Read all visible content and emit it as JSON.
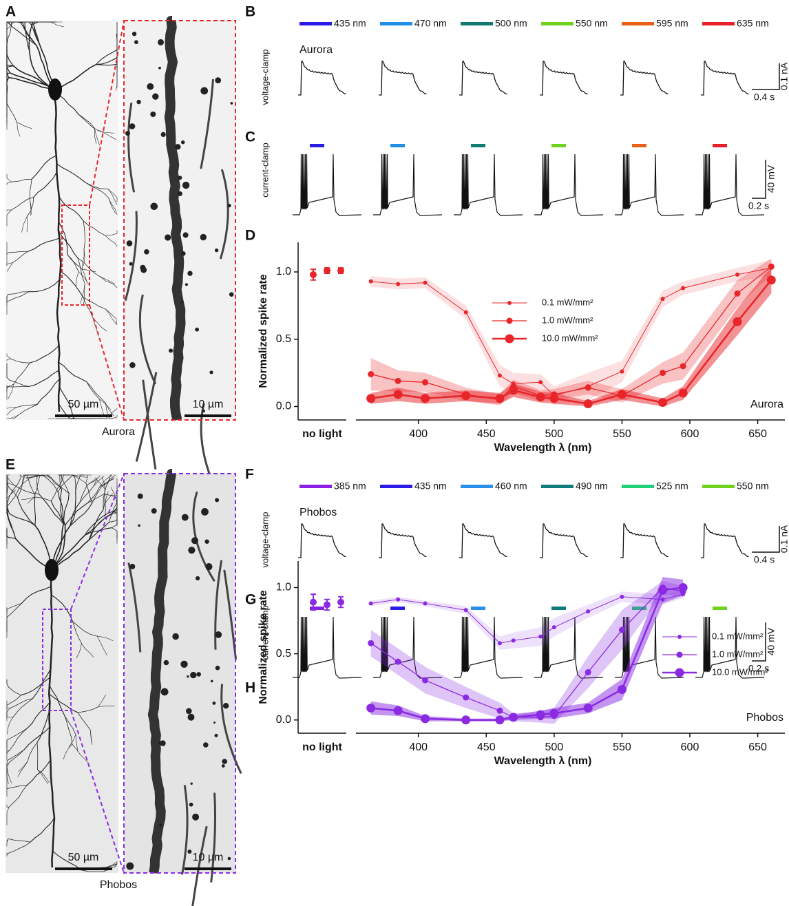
{
  "panel_letters": [
    "A",
    "B",
    "C",
    "D",
    "E",
    "F",
    "G",
    "H"
  ],
  "images": [
    {
      "caption": "Aurora",
      "scale_bar_overview": "50 µm",
      "scale_bar_inset": "10 µm",
      "color": "#e8262a"
    },
    {
      "caption": "Phobos",
      "scale_bar_overview": "50 µm",
      "scale_bar_inset": "10 µm",
      "color": "#8a2be2"
    }
  ],
  "recordings": [
    {
      "construct": "Aurora",
      "voltage_clamp_label": "voltage-clamp",
      "current_clamp_label": "current-clamp",
      "voltage_scale": {
        "amplitude": "0.1 nA",
        "time": "0.4 s"
      },
      "current_scale": {
        "amplitude": "40 mV",
        "time": "0.2 s"
      },
      "stimuli": [
        {
          "label": "435 nm",
          "color": "#2a1be6"
        },
        {
          "label": "470 nm",
          "color": "#1f8fe8"
        },
        {
          "label": "500 nm",
          "color": "#117a72"
        },
        {
          "label": "550 nm",
          "color": "#6fd21f"
        },
        {
          "label": "595 nm",
          "color": "#e85f16"
        },
        {
          "label": "635 nm",
          "color": "#e8202a"
        }
      ]
    },
    {
      "construct": "Phobos",
      "voltage_clamp_label": "voltage-clamp",
      "current_clamp_label": "current-clamp",
      "voltage_scale": {
        "amplitude": "0.1 nA",
        "time": "0.4 s"
      },
      "current_scale": {
        "amplitude": "40 mV",
        "time": "0.2 s"
      },
      "stimuli": [
        {
          "label": "385 nm",
          "color": "#8a1fe6"
        },
        {
          "label": "435 nm",
          "color": "#2a1be6"
        },
        {
          "label": "460 nm",
          "color": "#2a8fe8"
        },
        {
          "label": "490 nm",
          "color": "#117a7a"
        },
        {
          "label": "525 nm",
          "color": "#20d078"
        },
        {
          "label": "550 nm",
          "color": "#6fd21f"
        }
      ]
    }
  ],
  "chart_data": [
    {
      "type": "line",
      "annotation": "Aurora",
      "xlabel": "Wavelength λ (nm)",
      "ylabel": "Normalized spike rate",
      "x": [
        365,
        385,
        405,
        435,
        460,
        470,
        490,
        500,
        525,
        550,
        580,
        595,
        635,
        660
      ],
      "xlim": [
        354,
        670
      ],
      "xticks": [
        400,
        450,
        500,
        550,
        600,
        650
      ],
      "ylim": [
        -0.1,
        1.22
      ],
      "yticks": [
        {
          "value": 0,
          "label": "0.0"
        },
        {
          "value": 0.5,
          "label": "0.5"
        },
        {
          "value": 1,
          "label": "1.0"
        }
      ],
      "legend_position": "upper center",
      "control": {
        "label": "no light",
        "values": [
          0.98,
          1.01,
          1.01
        ],
        "errors": [
          0.04,
          0.02,
          0.02
        ]
      },
      "series": [
        {
          "name": "0.1 mW/mm²",
          "color": "#e8262a",
          "values": [
            0.93,
            0.91,
            0.92,
            0.7,
            0.23,
            0.17,
            0.18,
            0.08,
            0.15,
            0.26,
            0.8,
            0.88,
            0.98,
            1.03
          ],
          "errors": [
            0.04,
            0.04,
            0.04,
            0.05,
            0.08,
            0.08,
            0.06,
            0.07,
            0.1,
            0.08,
            0.06,
            0.05,
            0.05,
            0.06
          ]
        },
        {
          "name": "1.0 mW/mm²",
          "color": "#e8262a",
          "values": [
            0.24,
            0.19,
            0.18,
            0.09,
            0.05,
            0.15,
            0.08,
            0.09,
            0.14,
            0.08,
            0.25,
            0.3,
            0.84,
            1.04
          ],
          "errors": [
            0.12,
            0.08,
            0.07,
            0.05,
            0.04,
            0.05,
            0.04,
            0.04,
            0.05,
            0.05,
            0.08,
            0.1,
            0.1,
            0.06
          ]
        },
        {
          "name": "10.0 mW/mm²",
          "color": "#e8262a",
          "values": [
            0.06,
            0.09,
            0.06,
            0.08,
            0.06,
            0.12,
            0.07,
            0.06,
            0.02,
            0.09,
            0.03,
            0.1,
            0.63,
            0.94
          ],
          "errors": [
            0.04,
            0.05,
            0.04,
            0.04,
            0.04,
            0.05,
            0.04,
            0.04,
            0.02,
            0.04,
            0.03,
            0.05,
            0.1,
            0.1
          ]
        }
      ]
    },
    {
      "type": "line",
      "annotation": "Phobos",
      "xlabel": "Wavelength λ (nm)",
      "ylabel": "Normalized spike rate",
      "x": [
        365,
        385,
        405,
        435,
        460,
        470,
        490,
        500,
        525,
        550,
        580,
        595
      ],
      "xlim": [
        354,
        670
      ],
      "xticks": [
        400,
        450,
        500,
        550,
        600,
        650
      ],
      "ylim": [
        -0.1,
        1.2
      ],
      "yticks": [
        {
          "value": 0,
          "label": "0.0"
        },
        {
          "value": 0.5,
          "label": "0.5"
        },
        {
          "value": 1,
          "label": "1.0"
        }
      ],
      "legend_position": "center right",
      "control": {
        "label": "no light",
        "values": [
          0.89,
          0.87,
          0.89
        ],
        "errors": [
          0.06,
          0.04,
          0.04
        ]
      },
      "series": [
        {
          "name": "0.1 mW/mm²",
          "color": "#8a2be2",
          "values": [
            0.88,
            0.91,
            0.88,
            0.83,
            0.58,
            0.6,
            0.63,
            0.7,
            0.82,
            0.93,
            0.91,
            0.95
          ],
          "errors": [
            0.02,
            0.02,
            0.02,
            0.03,
            0.05,
            0.06,
            0.07,
            0.07,
            0.05,
            0.04,
            0.04,
            0.03
          ]
        },
        {
          "name": "1.0 mW/mm²",
          "color": "#8a2be2",
          "values": [
            0.58,
            0.44,
            0.3,
            0.17,
            0.07,
            0.02,
            0.02,
            0.03,
            0.36,
            0.68,
            1.0,
            0.97
          ],
          "errors": [
            0.1,
            0.1,
            0.1,
            0.08,
            0.06,
            0.03,
            0.04,
            0.06,
            0.12,
            0.15,
            0.05,
            0.04
          ]
        },
        {
          "name": "10.0 mW/mm²",
          "color": "#8a2be2",
          "values": [
            0.09,
            0.07,
            0.01,
            0.0,
            0.0,
            0.02,
            0.04,
            0.05,
            0.09,
            0.23,
            0.98,
            1.0
          ],
          "errors": [
            0.05,
            0.04,
            0.02,
            0.01,
            0.01,
            0.02,
            0.03,
            0.04,
            0.04,
            0.08,
            0.1,
            0.06
          ]
        }
      ]
    }
  ]
}
